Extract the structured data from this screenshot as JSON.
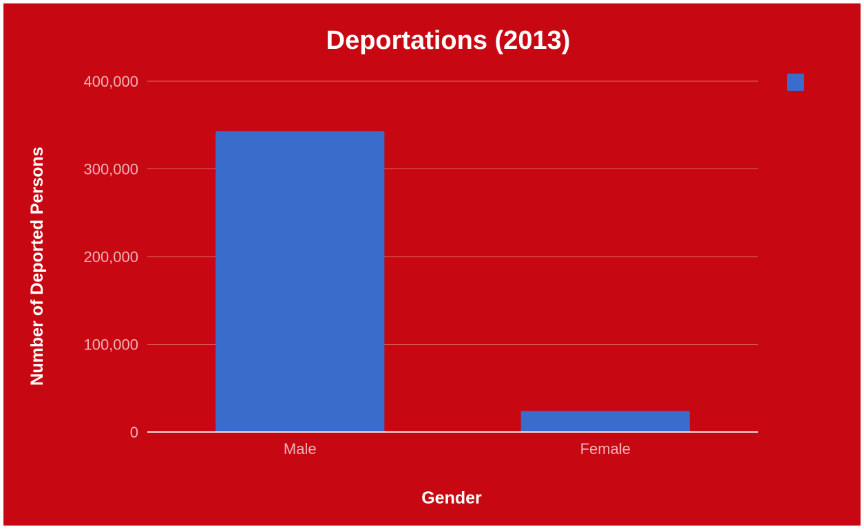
{
  "chart_data": {
    "type": "bar",
    "title": "Deportations  (2013)",
    "xlabel": "Gender",
    "ylabel": "Number of Deported Persons",
    "categories": [
      "Male",
      "Female"
    ],
    "series": [
      {
        "values": [
          343000,
          24000
        ]
      }
    ],
    "ylim": [
      0,
      400000
    ],
    "yticks": [
      0,
      100000,
      200000,
      300000,
      400000
    ],
    "ytick_labels": [
      "0",
      "100,000",
      "200,000",
      "300,000",
      "400,000"
    ],
    "grid": true,
    "legend": "top-right",
    "colors": {
      "background": "#C70711",
      "bar": "#3A6CCB",
      "gridline": "#E56A70",
      "baseline": "#F8DADB",
      "title": "#FFFFFF",
      "tick_label": "#F2B3B6"
    }
  }
}
